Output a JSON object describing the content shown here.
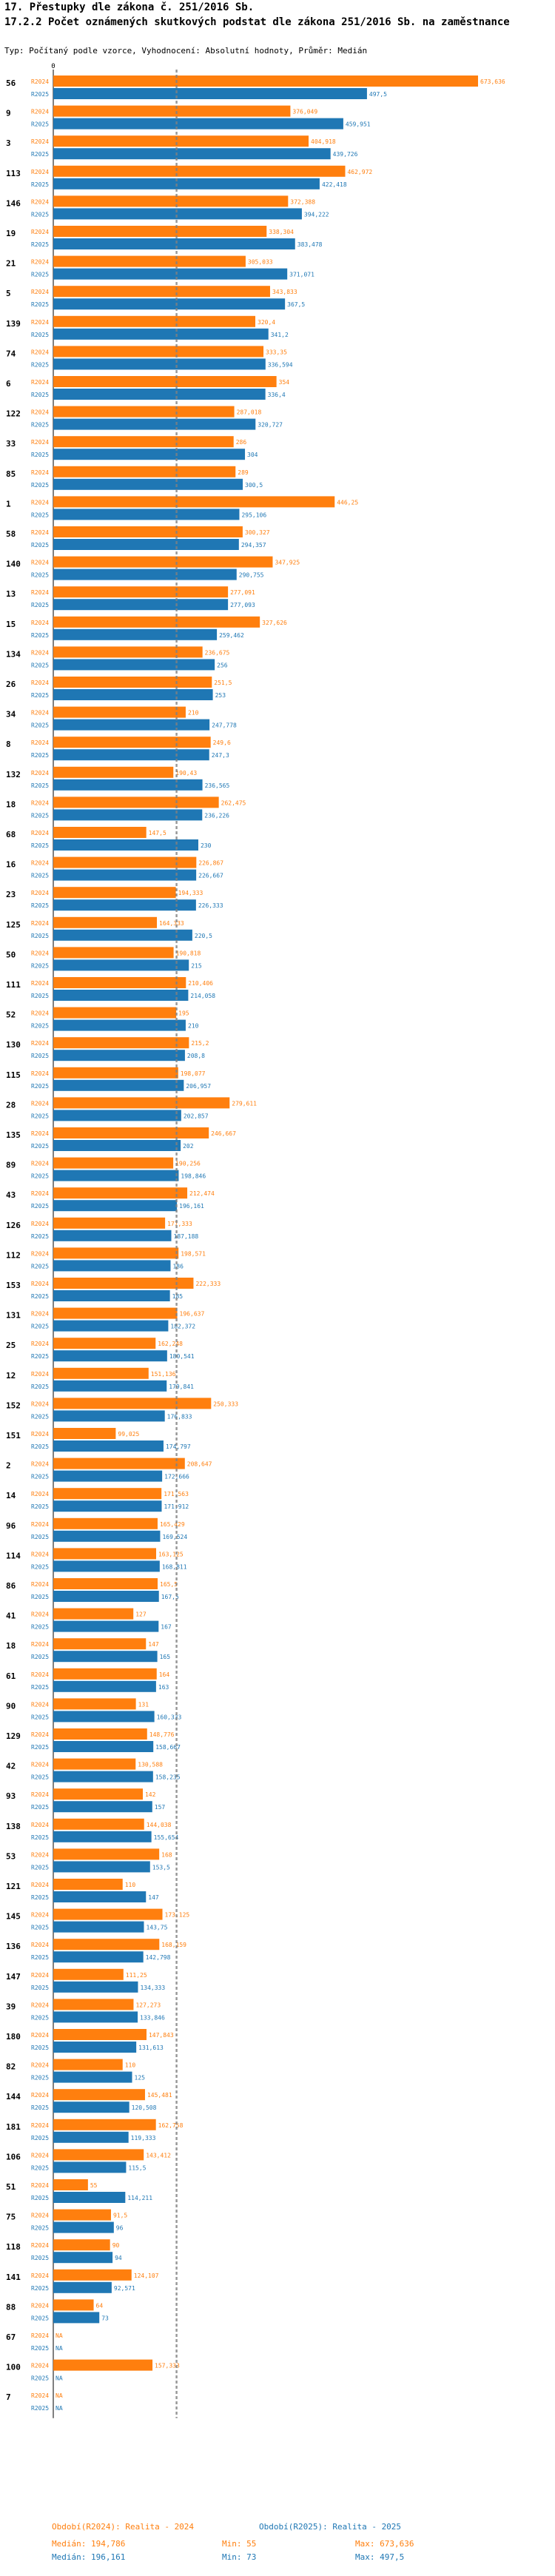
{
  "header": {
    "title1": "17. Přestupky dle zákona č. 251/2016 Sb.",
    "title2": "17.2.2 Počet oznámených skutkových podstat dle zákona 251/2016 Sb. na zaměstnance",
    "subtitle": "Typ: Počítaný podle vzorce, Vyhodnocení: Absolutní hodnoty, Průměr: Medián"
  },
  "colors": {
    "r2024": "#ff7f0e",
    "r2025": "#1f77b4",
    "r2024_text": "#ff7f0e",
    "r2025_text": "#1f77b4",
    "median": "#808080"
  },
  "footer": {
    "period_2024": "Období(R2024): Realita - 2024",
    "period_2025": "Období(R2025): Realita - 2025",
    "median_2024": "Medián: 194,786",
    "min_2024": "Min: 55",
    "max_2024": "Max: 673,636",
    "median_2025": "Medián: 196,161",
    "min_2025": "Min: 73",
    "max_2025": "Max: 497,5"
  },
  "chart_data": {
    "type": "bar",
    "orientation": "horizontal",
    "xlim": [
      0,
      673.636
    ],
    "series_names": [
      "R2024",
      "R2025"
    ],
    "median_2024": 194.786,
    "median_2025": 196.161,
    "axis_zero_label": "0",
    "categories": [
      "56",
      "9",
      "3",
      "113",
      "146",
      "19",
      "21",
      "5",
      "139",
      "74",
      "6",
      "122",
      "33",
      "85",
      "1",
      "58",
      "140",
      "13",
      "15",
      "134",
      "26",
      "34",
      "8",
      "132",
      "18",
      "68",
      "16",
      "23",
      "125",
      "50",
      "111",
      "52",
      "130",
      "115",
      "28",
      "135",
      "89",
      "43",
      "126",
      "112",
      "153",
      "131",
      "25",
      "12",
      "152",
      "151",
      "2",
      "14",
      "96",
      "114",
      "86",
      "41",
      "18",
      "61",
      "90",
      "129",
      "42",
      "93",
      "138",
      "53",
      "121",
      "145",
      "136",
      "147",
      "39",
      "180",
      "82",
      "144",
      "181",
      "106",
      "51",
      "75",
      "118",
      "141",
      "88",
      "67",
      "100",
      "7"
    ],
    "values_2024": [
      673.636,
      376.049,
      404.918,
      462.972,
      372.388,
      338.304,
      305.033,
      343.833,
      320.4,
      333.35,
      354,
      287.018,
      286,
      289,
      446.25,
      300.327,
      347.925,
      277.091,
      327.626,
      236.675,
      251.5,
      210,
      249.6,
      190.43,
      262.475,
      147.5,
      226.867,
      194.333,
      164.333,
      190.818,
      210.406,
      195,
      215.2,
      198.077,
      279.611,
      246.667,
      190.256,
      212.474,
      177.333,
      198.571,
      222.333,
      196.637,
      162.248,
      151.136,
      250.333,
      99.025,
      208.647,
      171.563,
      165.429,
      163.125,
      165.5,
      127,
      147,
      164,
      131,
      148.776,
      130.588,
      142,
      144.038,
      168,
      110,
      173.125,
      168.159,
      111.25,
      127.273,
      147.843,
      110,
      145.481,
      162.758,
      143.412,
      55,
      91.5,
      90,
      124.107,
      64,
      null,
      157.333,
      null
    ],
    "values_2025": [
      497.5,
      459.951,
      439.726,
      422.418,
      394.222,
      383.478,
      371.071,
      367.5,
      341.2,
      336.594,
      336.4,
      320.727,
      304,
      300.5,
      295.106,
      294.357,
      290.755,
      277.093,
      259.462,
      256,
      253,
      247.778,
      247.3,
      236.565,
      236.226,
      230,
      226.667,
      226.333,
      220.5,
      215,
      214.058,
      210,
      208.8,
      206.957,
      202.857,
      202,
      198.846,
      196.161,
      187.188,
      186,
      185,
      182.372,
      180.541,
      179.841,
      176.833,
      174.797,
      172.666,
      171.912,
      169.524,
      168.811,
      167.5,
      167,
      165,
      163,
      160.333,
      158.667,
      158.235,
      157,
      155.654,
      153.5,
      147,
      143.75,
      142.798,
      134.333,
      133.846,
      131.613,
      125,
      120.508,
      119.333,
      115.5,
      114.211,
      96,
      94,
      92.571,
      73,
      null,
      null,
      null
    ],
    "value_labels_2024": [
      "673,636",
      "376,049",
      "404,918",
      "462,972",
      "372,388",
      "338,304",
      "305,033",
      "343,833",
      "320,4",
      "333,35",
      "354",
      "287,018",
      "286",
      "289",
      "446,25",
      "300,327",
      "347,925",
      "277,091",
      "327,626",
      "236,675",
      "251,5",
      "210",
      "249,6",
      "190,43",
      "262,475",
      "147,5",
      "226,867",
      "194,333",
      "164,333",
      "190,818",
      "210,406",
      "195",
      "215,2",
      "198,077",
      "279,611",
      "246,667",
      "190,256",
      "212,474",
      "177,333",
      "198,571",
      "222,333",
      "196,637",
      "162,248",
      "151,136",
      "250,333",
      "99,025",
      "208,647",
      "171,563",
      "165,429",
      "163,125",
      "165,5",
      "127",
      "147",
      "164",
      "131",
      "148,776",
      "130,588",
      "142",
      "144,038",
      "168",
      "110",
      "173,125",
      "168,159",
      "111,25",
      "127,273",
      "147,843",
      "110",
      "145,481",
      "162,758",
      "143,412",
      "55",
      "91,5",
      "90",
      "124,107",
      "64",
      "NA",
      "157,333",
      "NA"
    ],
    "value_labels_2025": [
      "497,5",
      "459,951",
      "439,726",
      "422,418",
      "394,222",
      "383,478",
      "371,071",
      "367,5",
      "341,2",
      "336,594",
      "336,4",
      "320,727",
      "304",
      "300,5",
      "295,106",
      "294,357",
      "290,755",
      "277,093",
      "259,462",
      "256",
      "253",
      "247,778",
      "247,3",
      "236,565",
      "236,226",
      "230",
      "226,667",
      "226,333",
      "220,5",
      "215",
      "214,058",
      "210",
      "208,8",
      "206,957",
      "202,857",
      "202",
      "198,846",
      "196,161",
      "187,188",
      "186",
      "185",
      "182,372",
      "180,541",
      "179,841",
      "176,833",
      "174,797",
      "172,666",
      "171,912",
      "169,524",
      "168,811",
      "167,5",
      "167",
      "165",
      "163",
      "160,333",
      "158,667",
      "158,235",
      "157",
      "155,654",
      "153,5",
      "147",
      "143,75",
      "142,798",
      "134,333",
      "133,846",
      "131,613",
      "125",
      "120,508",
      "119,333",
      "115,5",
      "114,211",
      "96",
      "94",
      "92,571",
      "73",
      "NA",
      "NA",
      "NA"
    ]
  }
}
